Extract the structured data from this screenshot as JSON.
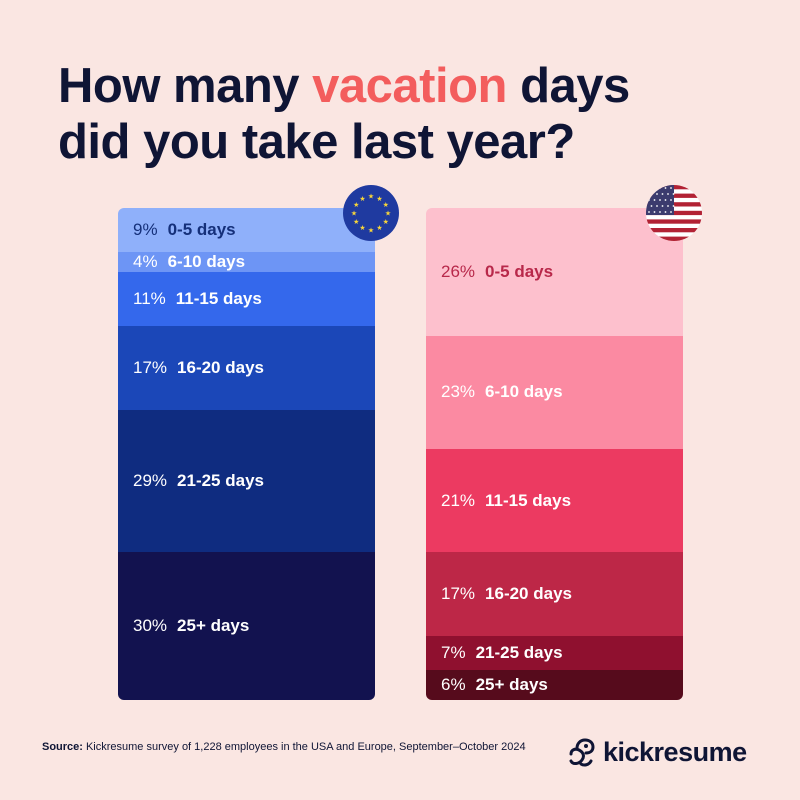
{
  "title": {
    "before": "How many ",
    "highlight": "vacation",
    "after": " days",
    "line2": "did you take last year?"
  },
  "chart_data": [
    {
      "type": "bar",
      "stacked": true,
      "region": "Europe",
      "flag_icon": "eu-flag-icon",
      "categories": [
        "0-5 days",
        "6-10 days",
        "11-15 days",
        "16-20 days",
        "21-25 days",
        "25+ days"
      ],
      "values": [
        9,
        4,
        11,
        17,
        29,
        30
      ],
      "value_labels": [
        "9%",
        "4%",
        "11%",
        "17%",
        "29%",
        "30%"
      ],
      "colors": [
        "#8fb0fa",
        "#6d95f5",
        "#3468ec",
        "#1b47b8",
        "#0f2c80",
        "#12124f"
      ],
      "text_colors": [
        "#15307a",
        "#ffffff",
        "#ffffff",
        "#ffffff",
        "#ffffff",
        "#ffffff"
      ]
    },
    {
      "type": "bar",
      "stacked": true,
      "region": "USA",
      "flag_icon": "us-flag-icon",
      "categories": [
        "0-5 days",
        "6-10 days",
        "11-15 days",
        "16-20 days",
        "21-25 days",
        "25+ days"
      ],
      "values": [
        26,
        23,
        21,
        17,
        7,
        6
      ],
      "value_labels": [
        "26%",
        "23%",
        "21%",
        "17%",
        "7%",
        "6%"
      ],
      "colors": [
        "#fdc0cd",
        "#fb8aa2",
        "#ec3a61",
        "#bd2747",
        "#8f102f",
        "#560b1c"
      ],
      "text_colors": [
        "#b8284a",
        "#ffffff",
        "#ffffff",
        "#ffffff",
        "#ffffff",
        "#ffffff"
      ]
    }
  ],
  "source": {
    "label": "Source:",
    "text": "Kickresume survey of 1,228 employees in the USA and Europe, September–October 2024"
  },
  "logo": {
    "text": "kickresume"
  }
}
